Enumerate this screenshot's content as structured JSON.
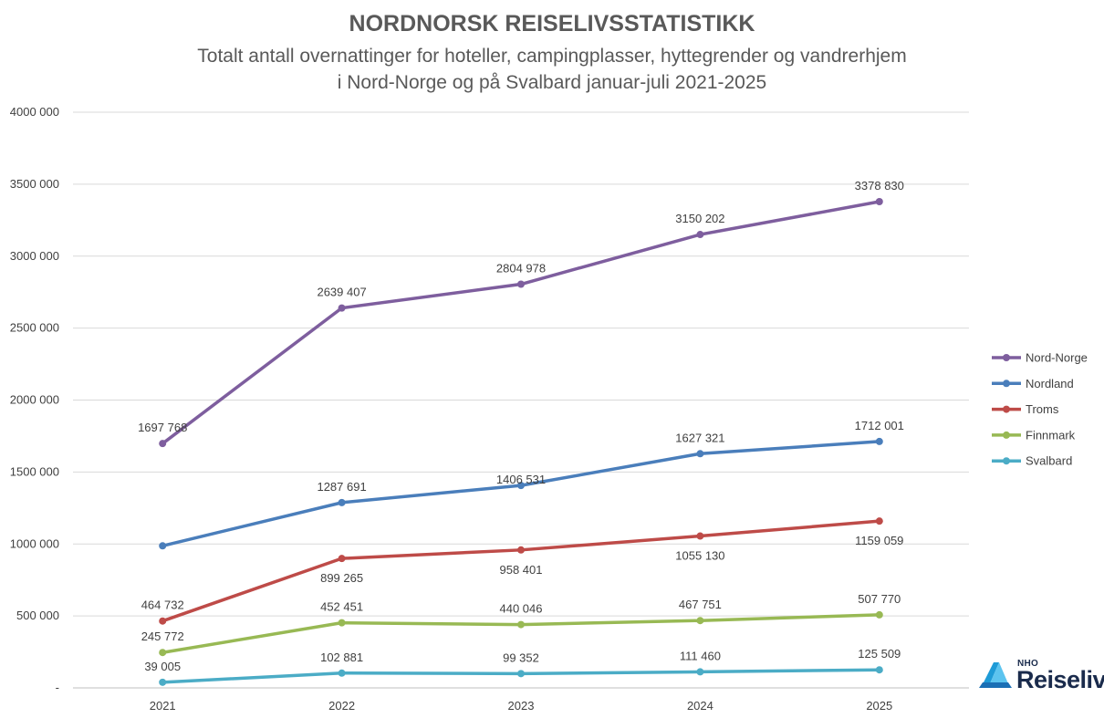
{
  "title": "NORDNORSK REISELIVSSTATISTIKK",
  "subtitle_line1": "Totalt antall overnattinger for hoteller, campingplasser, hyttegrender og vandrerhjem",
  "subtitle_line2": "i Nord-Norge og på Svalbard januar-juli 2021-2025",
  "logo": {
    "small": "NHO",
    "big": "Reiseliv",
    "icon": "nho-reiseliv-logo-icon"
  },
  "chart_data": {
    "type": "line",
    "categories": [
      "2021",
      "2022",
      "2023",
      "2024",
      "2025"
    ],
    "ylim": [
      0,
      4000000
    ],
    "yticks": [
      0,
      500000,
      1000000,
      1500000,
      2000000,
      2500000,
      3000000,
      3500000,
      4000000
    ],
    "ytick_labels": [
      "-",
      "500 000",
      "1000 000",
      "1500 000",
      "2000 000",
      "2500 000",
      "3000 000",
      "3500 000",
      "4000 000"
    ],
    "grid": true,
    "legend_position": "right",
    "series": [
      {
        "name": "Nord-Norge",
        "color": "#7E5E9E",
        "values": [
          1697768,
          2639407,
          2804978,
          3150202,
          3378830
        ],
        "labels": [
          "1697 768",
          "2639 407",
          "2804 978",
          "3150 202",
          "3378 830"
        ],
        "label_pos": [
          "above",
          "above",
          "above",
          "above",
          "above"
        ]
      },
      {
        "name": "Nordland",
        "color": "#4A7EBB",
        "values": [
          987000,
          1287691,
          1406531,
          1627321,
          1712001
        ],
        "labels": [
          "",
          "1287 691",
          "1406 531",
          "1627 321",
          "1712 001"
        ],
        "label_pos": [
          "above",
          "above",
          "center",
          "above",
          "above"
        ]
      },
      {
        "name": "Troms",
        "color": "#BE4B48",
        "values": [
          464732,
          899265,
          958401,
          1055130,
          1159059
        ],
        "labels": [
          "464 732",
          "899 265",
          "958 401",
          "1055 130",
          "1159 059"
        ],
        "label_pos": [
          "above",
          "below",
          "below",
          "below",
          "below"
        ]
      },
      {
        "name": "Finnmark",
        "color": "#98B954",
        "values": [
          245772,
          452451,
          440046,
          467751,
          507770
        ],
        "labels": [
          "245 772",
          "452 451",
          "440 046",
          "467 751",
          "507 770"
        ],
        "label_pos": [
          "above",
          "above",
          "above",
          "above",
          "above"
        ]
      },
      {
        "name": "Svalbard",
        "color": "#4BACC6",
        "values": [
          39005,
          102881,
          99352,
          111460,
          125509
        ],
        "labels": [
          "39 005",
          "102 881",
          "99 352",
          "111 460",
          "125 509"
        ],
        "label_pos": [
          "above",
          "above",
          "above",
          "above",
          "above"
        ]
      }
    ]
  }
}
